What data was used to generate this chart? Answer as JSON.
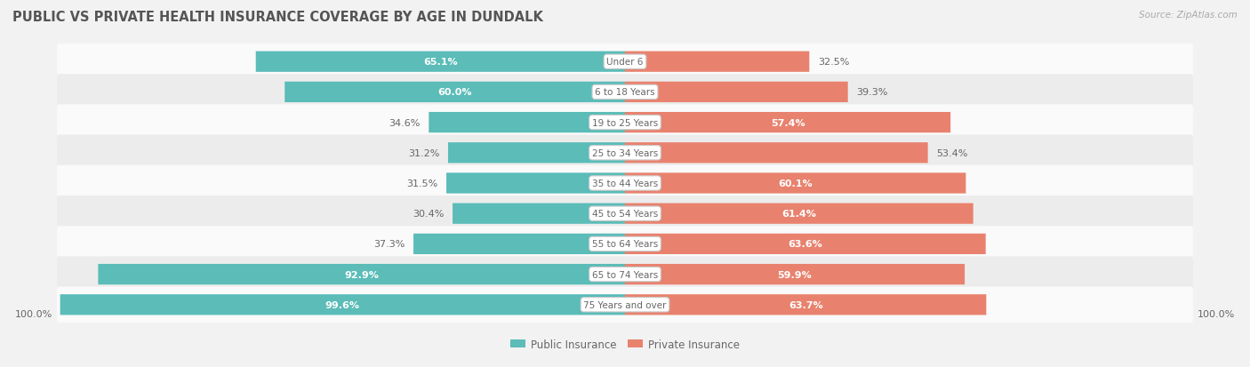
{
  "title": "PUBLIC VS PRIVATE HEALTH INSURANCE COVERAGE BY AGE IN DUNDALK",
  "source": "Source: ZipAtlas.com",
  "categories": [
    "Under 6",
    "6 to 18 Years",
    "19 to 25 Years",
    "25 to 34 Years",
    "35 to 44 Years",
    "45 to 54 Years",
    "55 to 64 Years",
    "65 to 74 Years",
    "75 Years and over"
  ],
  "public_values": [
    65.1,
    60.0,
    34.6,
    31.2,
    31.5,
    30.4,
    37.3,
    92.9,
    99.6
  ],
  "private_values": [
    32.5,
    39.3,
    57.4,
    53.4,
    60.1,
    61.4,
    63.6,
    59.9,
    63.7
  ],
  "public_color": "#5bbcb8",
  "private_color": "#e8826e",
  "bg_color": "#f2f2f2",
  "row_bg_light": "#fafafa",
  "row_bg_dark": "#ececec",
  "title_color": "#555555",
  "label_color": "#666666",
  "source_color": "#aaaaaa",
  "bar_label_inside_color": "#ffffff",
  "bar_label_outside_color": "#666666",
  "center_label_color": "#666666",
  "xlim": 100,
  "legend_label_public": "Public Insurance",
  "legend_label_private": "Private Insurance",
  "public_inside_threshold": 50,
  "private_inside_threshold": 55
}
